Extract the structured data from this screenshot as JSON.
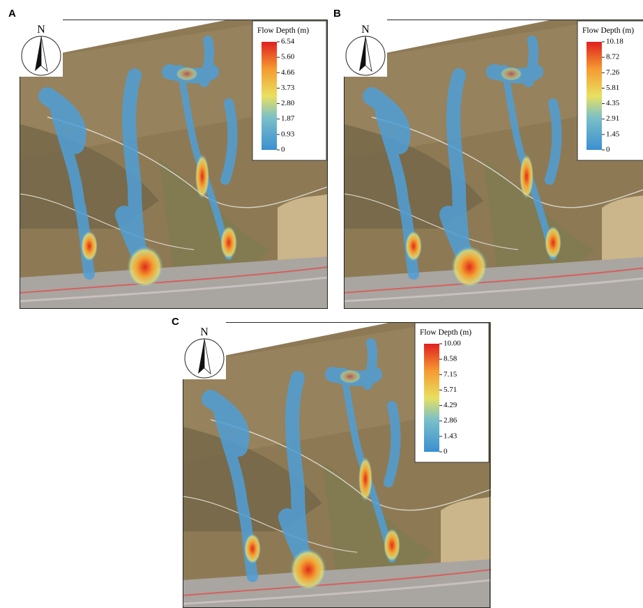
{
  "panels": [
    {
      "label": "A",
      "north": "N",
      "legend": {
        "title": "Flow Depth (m)",
        "ticks": [
          "6.54",
          "5.60",
          "4.66",
          "3.73",
          "2.80",
          "1.87",
          "0.93",
          "0"
        ]
      }
    },
    {
      "label": "B",
      "north": "N",
      "legend": {
        "title": "Flow Depth (m)",
        "ticks": [
          "10.18",
          "8.72",
          "7.26",
          "5.81",
          "4.35",
          "2.91",
          "1.45",
          "0"
        ]
      }
    },
    {
      "label": "C",
      "north": "N",
      "legend": {
        "title": "Flow Depth (m)",
        "ticks": [
          "10.00",
          "8.58",
          "7.15",
          "5.71",
          "4.29",
          "2.86",
          "1.43",
          "0"
        ]
      }
    }
  ]
}
